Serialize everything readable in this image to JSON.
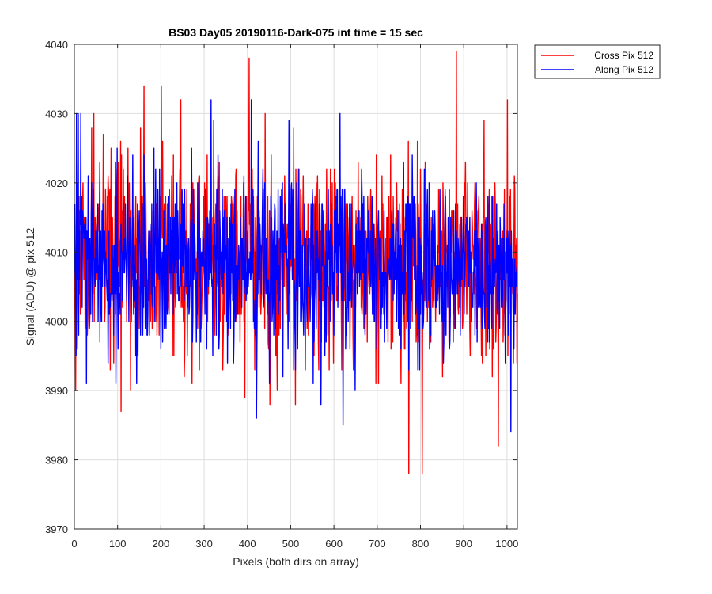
{
  "chart_data": {
    "type": "line",
    "title": "BS03 Day05 20190116-Dark-075 int time = 15 sec",
    "xlabel": "Pixels (both dirs on array)",
    "ylabel": "Signal (ADU) @ pix 512",
    "xlim": [
      0,
      1024
    ],
    "ylim": [
      3970,
      4040
    ],
    "xticks": [
      0,
      100,
      200,
      300,
      400,
      500,
      600,
      700,
      800,
      900,
      1000
    ],
    "yticks": [
      3970,
      3980,
      3990,
      4000,
      4010,
      4020,
      4030,
      4040
    ],
    "grid": true,
    "legend_position": "outside-top-right",
    "series": [
      {
        "name": "Cross Pix 512",
        "color": "#ff0000",
        "noise": {
          "count": 1024,
          "mean": 4009,
          "std": 7,
          "min": 3986,
          "max": 4034,
          "seed": 17
        },
        "spikes": [
          {
            "x": 2,
            "y": 3990
          },
          {
            "x": 44,
            "y": 4030
          },
          {
            "x": 107,
            "y": 3987
          },
          {
            "x": 160,
            "y": 4034
          },
          {
            "x": 200,
            "y": 4034
          },
          {
            "x": 245,
            "y": 4032
          },
          {
            "x": 403,
            "y": 4038
          },
          {
            "x": 440,
            "y": 4030
          },
          {
            "x": 772,
            "y": 3978
          },
          {
            "x": 803,
            "y": 3978
          },
          {
            "x": 882,
            "y": 4039
          },
          {
            "x": 979,
            "y": 3982
          },
          {
            "x": 1000,
            "y": 4032
          }
        ]
      },
      {
        "name": "Along Pix 512",
        "color": "#0000ff",
        "noise": {
          "count": 1024,
          "mean": 4008,
          "std": 6.5,
          "min": 3985,
          "max": 4032,
          "seed": 29
        },
        "spikes": [
          {
            "x": 3,
            "y": 3995
          },
          {
            "x": 4,
            "y": 4030
          },
          {
            "x": 8,
            "y": 4030
          },
          {
            "x": 14,
            "y": 4030
          },
          {
            "x": 15,
            "y": 4005
          },
          {
            "x": 315,
            "y": 4032
          },
          {
            "x": 408,
            "y": 4032
          },
          {
            "x": 420,
            "y": 3986
          },
          {
            "x": 620,
            "y": 3985
          },
          {
            "x": 1008,
            "y": 3984
          }
        ]
      }
    ]
  }
}
